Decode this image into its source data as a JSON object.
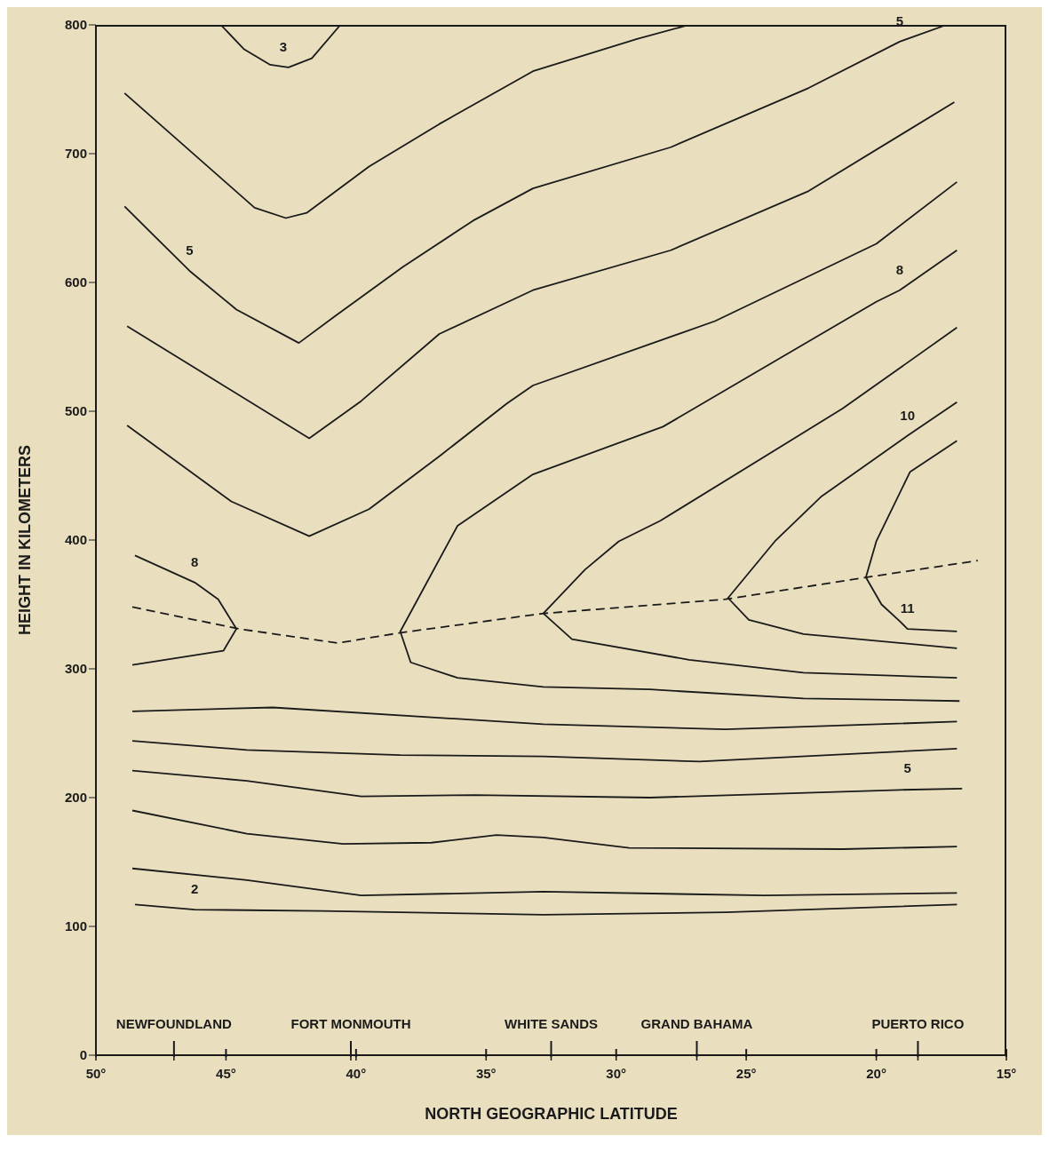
{
  "chart_data": {
    "type": "line",
    "xlabel": "NORTH GEOGRAPHIC LATITUDE",
    "ylabel": "HEIGHT IN KILOMETERS",
    "xlim": [
      50,
      15
    ],
    "xticks": [
      {
        "value": 50,
        "label": "50°"
      },
      {
        "value": 45,
        "label": "45°"
      },
      {
        "value": 40,
        "label": "40°"
      },
      {
        "value": 35,
        "label": "35°"
      },
      {
        "value": 30,
        "label": "30°"
      },
      {
        "value": 25,
        "label": "25°"
      },
      {
        "value": 20,
        "label": "20°"
      },
      {
        "value": 15,
        "label": "15°"
      },
      {
        "value": 47.0,
        "label": null
      },
      {
        "value": 40.2,
        "label": null
      },
      {
        "value": 32.5,
        "label": null
      },
      {
        "value": 26.9,
        "label": null
      },
      {
        "value": 18.4,
        "label": null
      }
    ],
    "ylim": [
      0,
      800
    ],
    "yticks": [
      0,
      100,
      200,
      300,
      400,
      500,
      600,
      700,
      800
    ],
    "grid": false,
    "marker": "none",
    "series": [
      {
        "color": "#1a1a1a",
        "x": [
          45.2,
          44.3,
          43.3,
          42.6,
          41.7,
          40.6
        ],
        "values": [
          800,
          781,
          769,
          767,
          774,
          800
        ]
      },
      {
        "color": "#1a1a1a",
        "x": [
          48.9,
          43.9,
          42.7,
          41.9,
          39.5,
          36.8,
          33.2,
          29.2,
          27.2
        ],
        "values": [
          747,
          658,
          650,
          654,
          690,
          723,
          764,
          789,
          800
        ]
      },
      {
        "color": "#1a1a1a",
        "x": [
          48.9,
          46.4,
          44.6,
          42.2,
          40.8,
          38.2,
          35.5,
          33.2,
          27.9,
          22.6,
          19.1,
          17.3
        ],
        "values": [
          659,
          609,
          579,
          553,
          574,
          612,
          648,
          673,
          705,
          751,
          787,
          800
        ]
      },
      {
        "color": "#1a1a1a",
        "x": [
          48.8,
          45.5,
          41.8,
          39.8,
          36.8,
          33.2,
          27.9,
          22.6,
          17.0
        ],
        "values": [
          566,
          525,
          479,
          508,
          560,
          594,
          625,
          671,
          740
        ]
      },
      {
        "color": "#1a1a1a",
        "x": [
          48.8,
          44.8,
          41.8,
          39.5,
          36.8,
          34.2,
          33.2,
          26.2,
          20.0,
          16.9
        ],
        "values": [
          489,
          430,
          403,
          424,
          465,
          506,
          520,
          570,
          630,
          678
        ]
      },
      {
        "color": "#1a1a1a",
        "x": [
          16.9,
          19.1,
          20.0,
          28.2,
          33.2,
          36.1,
          38.3,
          37.9,
          36.1,
          32.8,
          28.7,
          22.8,
          16.8
        ],
        "values": [
          625,
          594,
          585,
          488,
          451,
          411,
          329,
          305,
          293,
          286,
          284,
          277,
          275
        ]
      },
      {
        "color": "#1a1a1a",
        "x": [
          16.9,
          21.3,
          28.3,
          29.9,
          31.2,
          32.8,
          31.7,
          27.2,
          22.8,
          16.9
        ],
        "values": [
          565,
          502,
          415,
          399,
          377,
          343,
          323,
          307,
          297,
          293
        ]
      },
      {
        "color": "#1a1a1a",
        "x": [
          16.9,
          18.8,
          22.1,
          23.9,
          25.7,
          24.9,
          22.8,
          16.9
        ],
        "values": [
          507,
          481,
          434,
          399,
          355,
          338,
          327,
          316
        ]
      },
      {
        "color": "#1a1a1a",
        "x": [
          16.9,
          18.7,
          20.0,
          20.4,
          19.8,
          19.1,
          18.8,
          16.9
        ],
        "values": [
          477,
          453,
          399,
          371,
          350,
          337,
          331,
          329
        ]
      },
      {
        "color": "#1a1a1a",
        "x": [
          48.5,
          46.2,
          45.3,
          44.6,
          45.1,
          48.6
        ],
        "values": [
          388,
          367,
          354,
          331,
          314,
          303
        ]
      },
      {
        "color": "#1a1a1a",
        "x": [
          48.6,
          43.2,
          32.8,
          25.8,
          16.9
        ],
        "values": [
          267,
          270,
          257,
          253,
          259
        ]
      },
      {
        "color": "#1a1a1a",
        "x": [
          48.6,
          44.2,
          38.3,
          32.8,
          26.8,
          16.9
        ],
        "values": [
          244,
          237,
          233,
          232,
          228,
          238
        ]
      },
      {
        "color": "#1a1a1a",
        "x": [
          48.6,
          44.2,
          39.8,
          35.4,
          28.7,
          19.1,
          16.7
        ],
        "values": [
          221,
          213,
          201,
          202,
          200,
          206,
          207
        ]
      },
      {
        "color": "#1a1a1a",
        "x": [
          48.6,
          44.2,
          40.5,
          37.1,
          34.6,
          32.8,
          29.5,
          21.3,
          16.9
        ],
        "values": [
          190,
          172,
          164,
          165,
          171,
          169,
          161,
          160,
          162
        ]
      },
      {
        "color": "#1a1a1a",
        "x": [
          48.6,
          44.2,
          39.8,
          32.8,
          24.3,
          16.9
        ],
        "values": [
          145,
          136,
          124,
          127,
          124,
          126
        ]
      },
      {
        "color": "#1a1a1a",
        "x": [
          48.5,
          46.2,
          41.3,
          32.8,
          25.8,
          16.9
        ],
        "values": [
          117,
          113,
          112,
          109,
          111,
          117
        ]
      },
      {
        "color": "#1a1a1a",
        "line_style": "dashed",
        "x": [
          48.6,
          44.5,
          40.7,
          38.3,
          32.8,
          25.8,
          20.4,
          16.1
        ],
        "values": [
          348,
          331,
          320,
          328,
          343,
          354,
          371,
          384
        ]
      }
    ],
    "annotations": [
      {
        "text": "3",
        "x": 42.8,
        "y": 767
      },
      {
        "text": "5",
        "x": 46.4,
        "y": 609
      },
      {
        "text": "5",
        "x": 19.1,
        "y": 787
      },
      {
        "text": "8",
        "x": 19.1,
        "y": 594
      },
      {
        "text": "10",
        "x": 18.8,
        "y": 481
      },
      {
        "text": "8",
        "x": 46.2,
        "y": 367
      },
      {
        "text": "11",
        "x": 18.8,
        "y": 331
      },
      {
        "text": "5",
        "x": 18.8,
        "y": 207
      },
      {
        "text": "2",
        "x": 46.2,
        "y": 113
      },
      "NEWFOUNDLAND",
      "FORT MONMOUTH",
      "WHITE SANDS",
      "GRAND BAHAMA",
      "PUERTO RICO"
    ]
  }
}
